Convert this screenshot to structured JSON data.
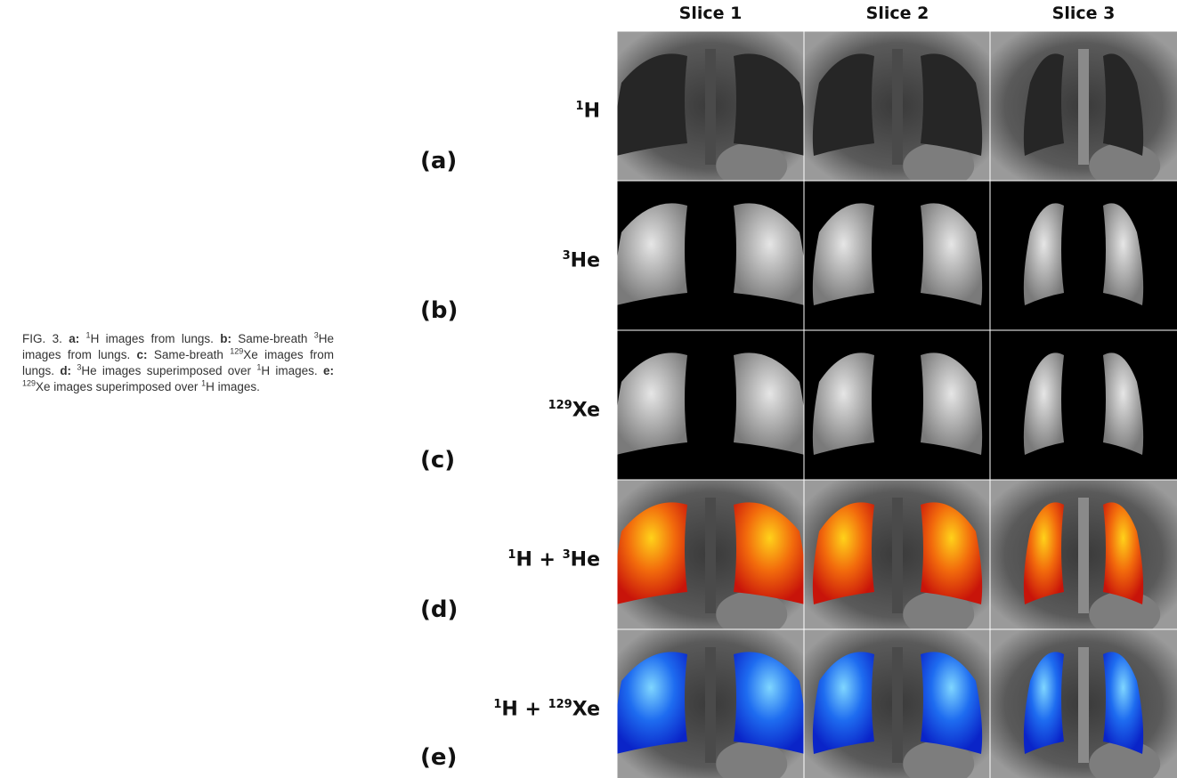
{
  "caption": {
    "runs": [
      "FIG. 3.",
      "a:",
      "1",
      "H images from lungs.",
      "b:",
      "Same-breath",
      "3",
      "He images from lungs.",
      "c:",
      "Same-breath",
      "129",
      "Xe images from lungs.",
      "d:",
      "3",
      "He images superimposed over",
      "1",
      "H images.",
      "e:",
      "129",
      "Xe images superimposed over",
      "1",
      "H images."
    ]
  },
  "columns": [
    "Slice 1",
    "Slice 2",
    "Slice 3"
  ],
  "rows": [
    {
      "label": [
        "1",
        "H"
      ],
      "letter": "(a)"
    },
    {
      "label": [
        "3",
        "He"
      ],
      "letter": "(b)"
    },
    {
      "label": [
        "129",
        "Xe"
      ],
      "letter": "(c)"
    },
    {
      "label": [
        "1",
        "H + ",
        "3",
        "He"
      ],
      "letter": "(d)"
    },
    {
      "label": [
        "1",
        "H + ",
        "129",
        "Xe"
      ],
      "letter": "(e)"
    }
  ]
}
